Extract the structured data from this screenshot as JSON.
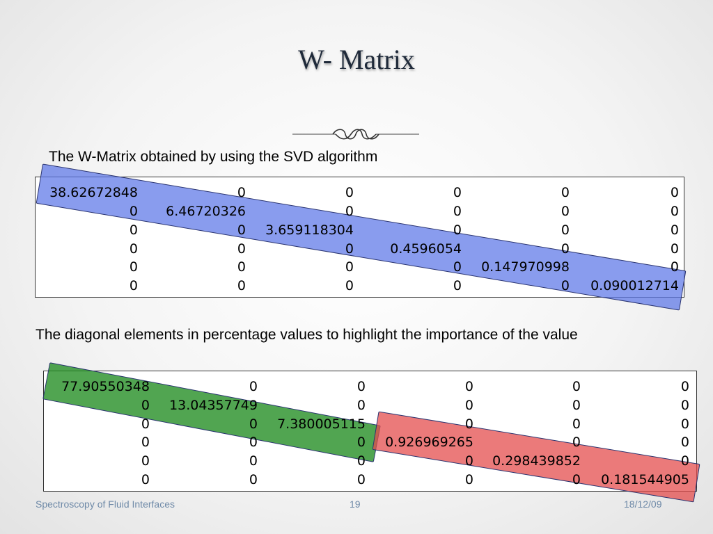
{
  "slide": {
    "title": "W- Matrix",
    "caption1": "The W-Matrix obtained by using the SVD algorithm",
    "caption2": "The diagonal elements in percentage values to highlight the importance of the value"
  },
  "matrix1": {
    "rows": [
      [
        "38.62672848",
        "0",
        "0",
        "0",
        "0",
        "0"
      ],
      [
        "0",
        "6.46720326",
        "0",
        "0",
        "0",
        "0"
      ],
      [
        "0",
        "0",
        "3.659118304",
        "0",
        "0",
        "0"
      ],
      [
        "0",
        "0",
        "0",
        "0.4596054",
        "0",
        "0"
      ],
      [
        "0",
        "0",
        "0",
        "0",
        "0.147970998",
        "0"
      ],
      [
        "0",
        "0",
        "0",
        "0",
        "0",
        "0.090012714"
      ]
    ]
  },
  "matrix2": {
    "rows": [
      [
        "77.90550348",
        "0",
        "0",
        "0",
        "0",
        "0"
      ],
      [
        "0",
        "13.04357749",
        "0",
        "0",
        "0",
        "0"
      ],
      [
        "0",
        "0",
        "7.380005115",
        "0",
        "0",
        "0"
      ],
      [
        "0",
        "0",
        "0",
        "0.926969265",
        "0",
        "0"
      ],
      [
        "0",
        "0",
        "0",
        "0",
        "0.298439852",
        "0"
      ],
      [
        "0",
        "0",
        "0",
        "0",
        "0",
        "0.181544905"
      ]
    ]
  },
  "footer": {
    "left": "Spectroscopy of Fluid Interfaces",
    "page": "19",
    "date": "18/12/09"
  },
  "colors": {
    "highlight_blue": "#5c76e8",
    "highlight_green": "#208c20",
    "highlight_red": "#e44e4e",
    "footer_text": "#6f8aa8"
  }
}
